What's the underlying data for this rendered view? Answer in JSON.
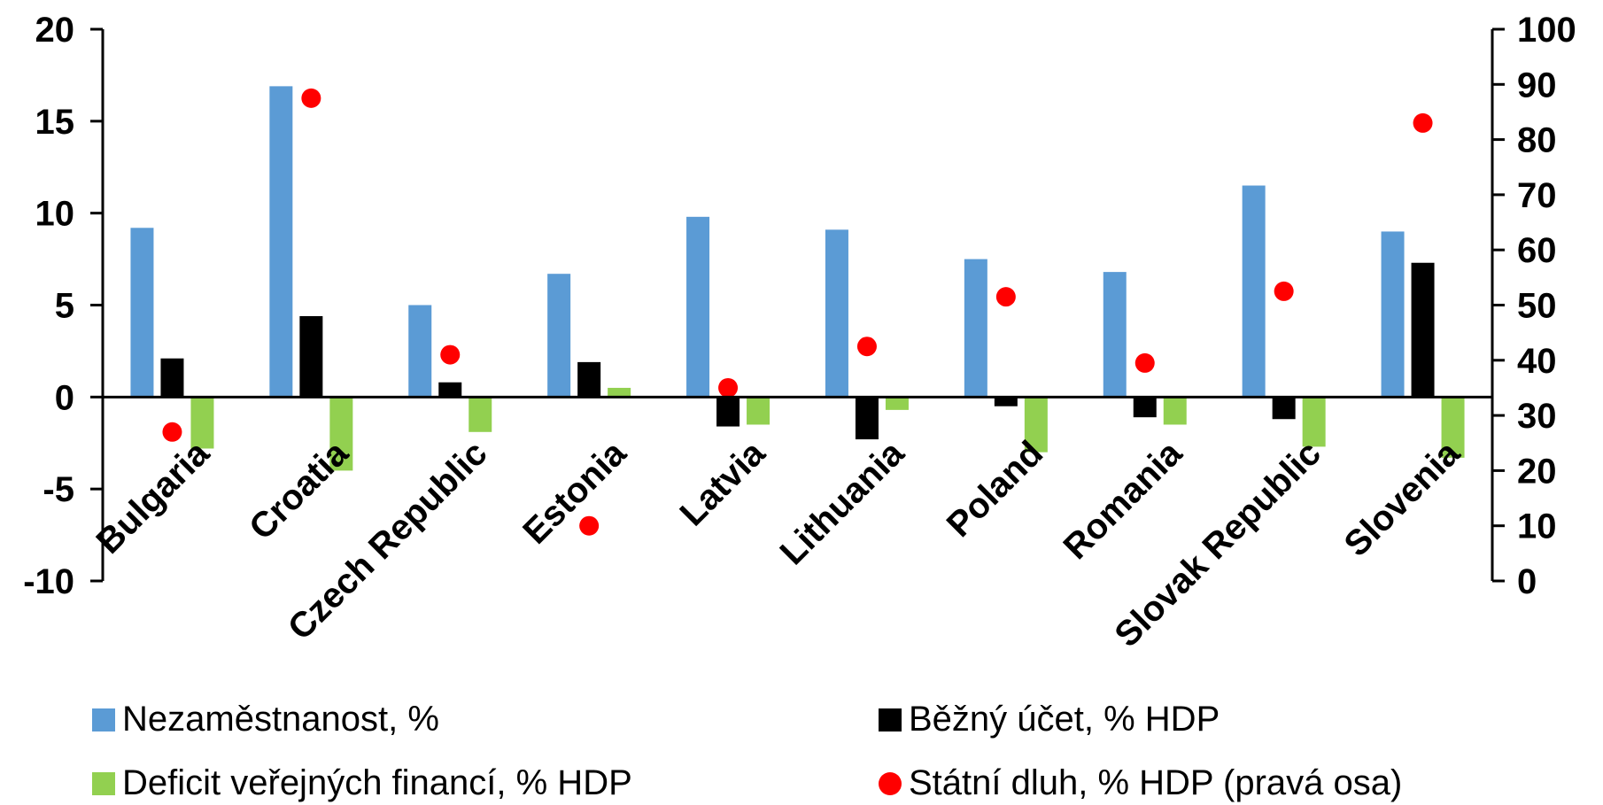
{
  "chart_data": {
    "type": "bar",
    "categories": [
      "Bulgaria",
      "Croatia",
      "Czech Republic",
      "Estonia",
      "Latvia",
      "Lithuania",
      "Poland",
      "Romania",
      "Slovak Republic",
      "Slovenia"
    ],
    "series": [
      {
        "name": "Nezaměstnanost, %",
        "axis": "left",
        "kind": "bar",
        "color": "#5B9BD5",
        "values": [
          9.2,
          16.9,
          5.0,
          6.7,
          9.8,
          9.1,
          7.5,
          6.8,
          11.5,
          9.0
        ]
      },
      {
        "name": "Běžný účet, % HDP",
        "axis": "left",
        "kind": "bar",
        "color": "#000000",
        "values": [
          2.1,
          4.4,
          0.8,
          1.9,
          -1.6,
          -2.3,
          -0.5,
          -1.1,
          -1.2,
          7.3
        ]
      },
      {
        "name": "Deficit veřejných financí, % HDP",
        "axis": "left",
        "kind": "bar",
        "color": "#92D050",
        "values": [
          -2.8,
          -4.0,
          -1.9,
          0.5,
          -1.5,
          -0.7,
          -3.0,
          -1.5,
          -2.7,
          -3.3
        ]
      },
      {
        "name": "Státní dluh, % HDP (pravá osa)",
        "axis": "right",
        "kind": "scatter",
        "color": "#FF0000",
        "values": [
          27,
          87.5,
          41,
          10,
          35,
          42.5,
          51.5,
          39.5,
          52.5,
          83
        ]
      }
    ],
    "y_left": {
      "min": -10,
      "max": 20,
      "ticks": [
        20,
        15,
        10,
        5,
        0,
        -5,
        -10
      ]
    },
    "y_right": {
      "min": 0,
      "max": 100,
      "ticks": [
        100,
        90,
        80,
        70,
        60,
        50,
        40,
        30,
        20,
        10,
        0
      ]
    },
    "legend_position": "bottom",
    "grid": false
  }
}
